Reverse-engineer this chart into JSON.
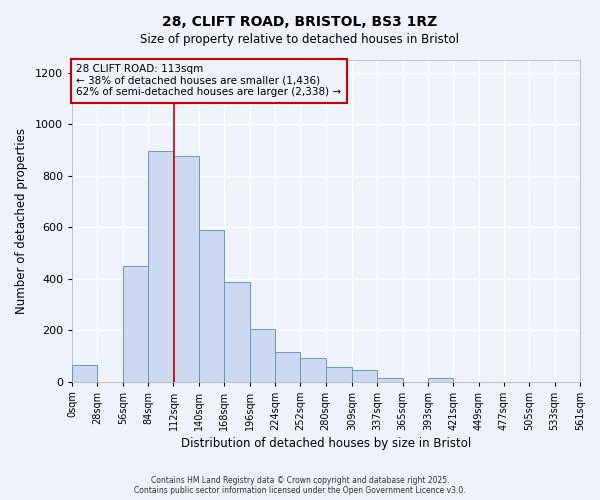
{
  "title": "28, CLIFT ROAD, BRISTOL, BS3 1RZ",
  "subtitle": "Size of property relative to detached houses in Bristol",
  "xlabel": "Distribution of detached houses by size in Bristol",
  "ylabel": "Number of detached properties",
  "bin_edges": [
    0,
    28,
    56,
    84,
    112,
    140,
    168,
    196,
    224,
    252,
    280,
    309,
    337,
    365,
    393,
    421,
    449,
    477,
    505,
    533,
    561
  ],
  "bar_heights": [
    65,
    0,
    450,
    895,
    875,
    590,
    385,
    205,
    115,
    90,
    55,
    45,
    15,
    0,
    15,
    0,
    0,
    0,
    0,
    0
  ],
  "bar_color": "#ccd9f0",
  "bar_edgecolor": "#6699cc",
  "property_size": 113,
  "annotation_line1": "28 CLIFT ROAD: 113sqm",
  "annotation_line2": "← 38% of detached houses are smaller (1,436)",
  "annotation_line3": "62% of semi-detached houses are larger (2,338) →",
  "annotation_box_color": "#cc0000",
  "vline_color": "#cc0000",
  "ylim": [
    0,
    1250
  ],
  "yticks": [
    0,
    200,
    400,
    600,
    800,
    1000,
    1200
  ],
  "background_color": "#eef2fa",
  "grid_color": "#ffffff",
  "footer_line1": "Contains HM Land Registry data © Crown copyright and database right 2025.",
  "footer_line2": "Contains public sector information licensed under the Open Government Licence v3.0."
}
